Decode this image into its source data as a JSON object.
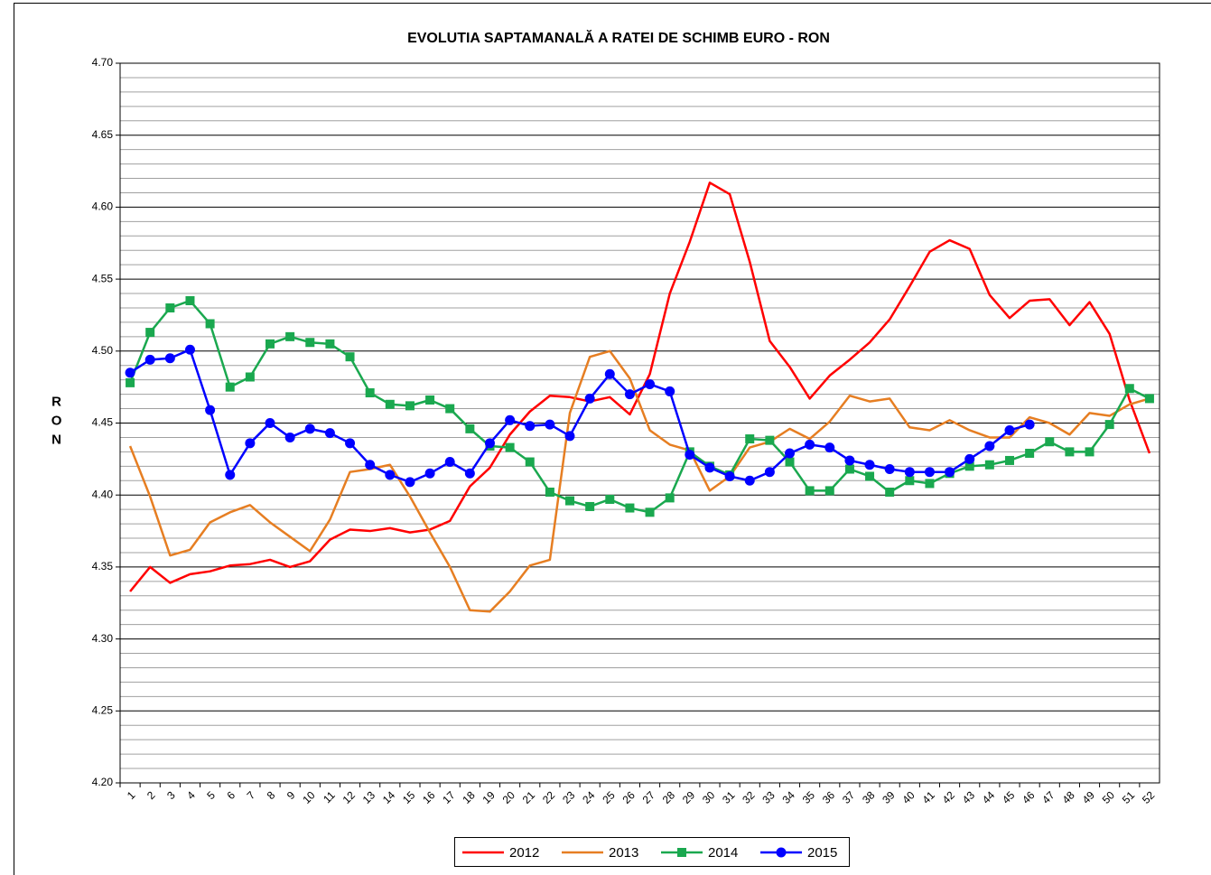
{
  "chart_data": {
    "type": "line",
    "title": "EVOLUTIA SAPTAMANALĂ A RATEI DE SCHIMB EURO - RON",
    "y_label": "RON",
    "categories": [
      "1",
      "2",
      "3",
      "4",
      "5",
      "6",
      "7",
      "8",
      "9",
      "10",
      "11",
      "12",
      "13",
      "14",
      "15",
      "16",
      "17",
      "18",
      "19",
      "20",
      "21",
      "22",
      "23",
      "24",
      "25",
      "26",
      "27",
      "28",
      "29",
      "30",
      "31",
      "32",
      "33",
      "34",
      "35",
      "36",
      "37",
      "38",
      "39",
      "40",
      "41",
      "42",
      "43",
      "44",
      "45",
      "46",
      "47",
      "48",
      "49",
      "50",
      "51",
      "52"
    ],
    "series": [
      {
        "name": "2012",
        "color": "#ff0000",
        "marker": null,
        "values": [
          4.333,
          4.35,
          4.339,
          4.345,
          4.347,
          4.351,
          4.352,
          4.355,
          4.35,
          4.354,
          4.369,
          4.376,
          4.375,
          4.377,
          4.374,
          4.376,
          4.382,
          4.406,
          4.419,
          4.442,
          4.458,
          4.469,
          4.468,
          4.465,
          4.468,
          4.456,
          4.484,
          4.54,
          4.576,
          4.617,
          4.609,
          4.562,
          4.507,
          4.489,
          4.467,
          4.483,
          4.494,
          4.506,
          4.522,
          4.545,
          4.569,
          4.577,
          4.571,
          4.539,
          4.523,
          4.535,
          4.536,
          4.518,
          4.534,
          4.512,
          4.466,
          4.429
        ]
      },
      {
        "name": "2013",
        "color": "#e67e22",
        "marker": null,
        "values": [
          4.434,
          4.399,
          4.358,
          4.362,
          4.381,
          4.388,
          4.393,
          4.381,
          4.371,
          4.361,
          4.383,
          4.416,
          4.418,
          4.421,
          4.399,
          4.374,
          4.35,
          4.32,
          4.319,
          4.333,
          4.351,
          4.355,
          4.457,
          4.496,
          4.5,
          4.481,
          4.445,
          4.435,
          4.431,
          4.403,
          4.413,
          4.433,
          4.437,
          4.446,
          4.439,
          4.451,
          4.469,
          4.465,
          4.467,
          4.447,
          4.445,
          4.452,
          4.445,
          4.44,
          4.44,
          4.454,
          4.45,
          4.442,
          4.457,
          4.455,
          4.463,
          4.467
        ]
      },
      {
        "name": "2014",
        "color": "#1aa84f",
        "marker": "square",
        "values": [
          4.478,
          4.513,
          4.53,
          4.535,
          4.519,
          4.475,
          4.482,
          4.505,
          4.51,
          4.506,
          4.505,
          4.496,
          4.471,
          4.463,
          4.462,
          4.466,
          4.46,
          4.446,
          4.434,
          4.433,
          4.423,
          4.402,
          4.396,
          4.392,
          4.397,
          4.391,
          4.388,
          4.398,
          4.43,
          4.42,
          4.414,
          4.439,
          4.438,
          4.423,
          4.403,
          4.403,
          4.418,
          4.413,
          4.402,
          4.41,
          4.408,
          4.415,
          4.42,
          4.421,
          4.424,
          4.429,
          4.437,
          4.43,
          4.43,
          4.449,
          4.474,
          4.467
        ]
      },
      {
        "name": "2015",
        "color": "#0000ff",
        "marker": "circle",
        "values": [
          4.485,
          4.494,
          4.495,
          4.501,
          4.459,
          4.414,
          4.436,
          4.45,
          4.44,
          4.446,
          4.443,
          4.436,
          4.421,
          4.414,
          4.409,
          4.415,
          4.423,
          4.415,
          4.436,
          4.452,
          4.448,
          4.449,
          4.441,
          4.467,
          4.484,
          4.47,
          4.477,
          4.472,
          4.428,
          4.419,
          4.413,
          4.41,
          4.416,
          4.429,
          4.435,
          4.433,
          4.424,
          4.421,
          4.418,
          4.416,
          4.416,
          4.416,
          4.425,
          4.434,
          4.445,
          4.449,
          null,
          null,
          null,
          null,
          null,
          null
        ]
      }
    ],
    "ylim": [
      4.2,
      4.7
    ],
    "yticks": [
      {
        "value": 4.2,
        "label": "4.20"
      },
      {
        "value": 4.25,
        "label": "4.25"
      },
      {
        "value": 4.3,
        "label": "4.30"
      },
      {
        "value": 4.35,
        "label": "4.35"
      },
      {
        "value": 4.4,
        "label": "4.40"
      },
      {
        "value": 4.45,
        "label": "4.45"
      },
      {
        "value": 4.5,
        "label": "4.50"
      },
      {
        "value": 4.55,
        "label": "4.55"
      },
      {
        "value": 4.6,
        "label": "4.60"
      },
      {
        "value": 4.65,
        "label": "4.65"
      },
      {
        "value": 4.7,
        "label": "4.70"
      }
    ],
    "grid": true,
    "legend": "bottom"
  }
}
